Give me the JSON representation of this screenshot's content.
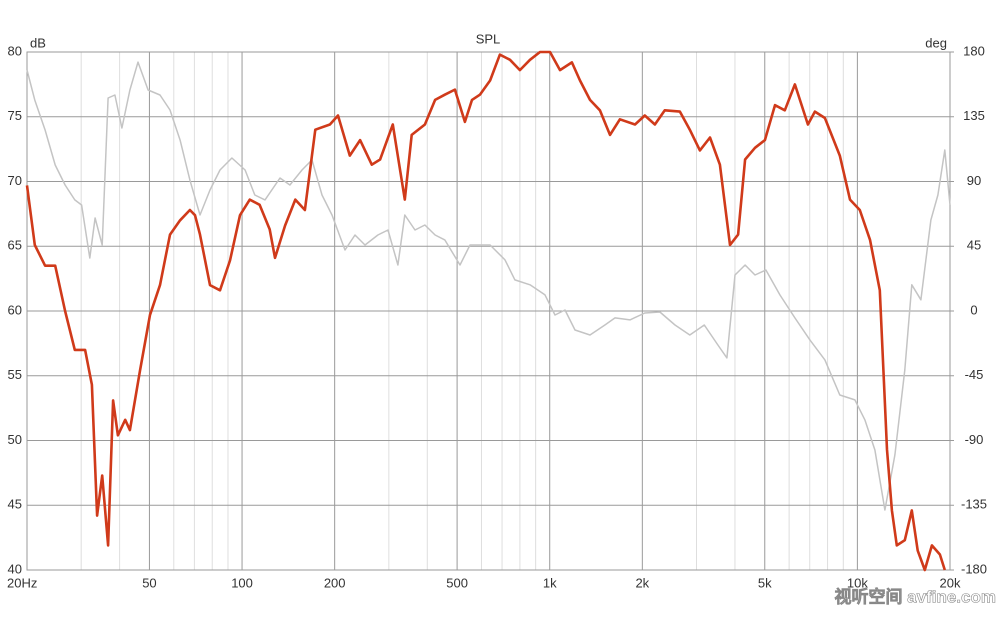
{
  "chart_data": {
    "type": "line",
    "title": "SPL",
    "ylabel": "dB",
    "y2label": "deg",
    "xscale": "log",
    "xlim": [
      20,
      20000
    ],
    "xticks": [
      {
        "value": 20,
        "label": "20Hz"
      },
      50,
      100,
      200,
      500,
      {
        "value": 1000,
        "label": "1k"
      },
      {
        "value": 2000,
        "label": "2k"
      },
      {
        "value": 5000,
        "label": "5k"
      },
      {
        "value": 10000,
        "label": "10k"
      },
      {
        "value": 20000,
        "label": "20k"
      }
    ],
    "xminorticks": [
      30,
      40,
      60,
      70,
      80,
      90,
      300,
      400,
      600,
      700,
      800,
      900,
      3000,
      4000,
      6000,
      7000,
      8000,
      9000
    ],
    "ylim": [
      40,
      80
    ],
    "yticks": [
      40,
      45,
      50,
      55,
      60,
      65,
      70,
      75,
      80
    ],
    "y2lim": [
      -180,
      180
    ],
    "y2ticks": [
      -180,
      -135,
      -90,
      -45,
      0,
      45,
      90,
      135,
      180
    ],
    "grid": true,
    "series": [
      {
        "name": "SPL",
        "color": "#d03a1a",
        "x": [
          20,
          21.2,
          22.9,
          24.7,
          26.6,
          28.6,
          30.9,
          32.5,
          33.8,
          35.1,
          36.7,
          38.1,
          39.5,
          41.7,
          43.2,
          46.6,
          50.2,
          54.1,
          58.3,
          62.9,
          67.7,
          70.3,
          73,
          78.7,
          84.8,
          91.4,
          98.5,
          106,
          114,
          123,
          128,
          138,
          149,
          160,
          173,
          193,
          205,
          224,
          242,
          264,
          281,
          309,
          338,
          356,
          393,
          424,
          456,
          492,
          530,
          559,
          593,
          640,
          689,
          743,
          800,
          863,
          930,
          1002,
          1080,
          1181,
          1254,
          1352,
          1456,
          1570,
          1691,
          1893,
          2038,
          2198,
          2367,
          2650,
          2853,
          3076,
          3318,
          3573,
          3855,
          4094,
          4317,
          4648,
          5005,
          5397,
          5808,
          6267,
          6904,
          7278,
          7839,
          8770,
          9462,
          10186,
          10990,
          11830,
          12480,
          12950,
          13430,
          14260,
          15030,
          15710,
          16560,
          17460,
          18540,
          19240
        ],
        "values": [
          69.7,
          65.1,
          63.5,
          63.5,
          60,
          57,
          57,
          54.3,
          44.2,
          47.3,
          41.9,
          53.1,
          50.4,
          51.6,
          50.8,
          55.4,
          59.7,
          62,
          65.9,
          67,
          67.8,
          67.4,
          65.9,
          62,
          61.6,
          63.9,
          67.4,
          68.6,
          68.2,
          66.3,
          64.1,
          66.6,
          68.6,
          67.8,
          74,
          74.4,
          75.1,
          72,
          73.2,
          71.3,
          71.7,
          74.4,
          68.6,
          73.6,
          74.4,
          76.3,
          76.7,
          77.1,
          74.6,
          76.3,
          76.7,
          77.8,
          79.8,
          79.4,
          78.6,
          79.4,
          80,
          80,
          78.6,
          79.2,
          77.8,
          76.3,
          75.5,
          73.6,
          74.8,
          74.4,
          75.1,
          74.4,
          75.5,
          75.4,
          74,
          72.4,
          73.4,
          71.3,
          65.1,
          65.9,
          71.7,
          72.6,
          73.2,
          75.9,
          75.5,
          77.5,
          74.4,
          75.4,
          74.9,
          72,
          68.6,
          67.8,
          65.5,
          61.6,
          49.3,
          44.6,
          41.9,
          42.3,
          44.6,
          41.5,
          40,
          41.9,
          41.2,
          40
        ]
      },
      {
        "name": "Phase",
        "color": "#c4c4c4",
        "axis": "y2",
        "x": [
          20,
          21.2,
          22.9,
          24.7,
          26.6,
          28.6,
          30.1,
          32,
          33.3,
          35.1,
          36.7,
          38.6,
          40.7,
          43.2,
          45.9,
          49.5,
          54.1,
          58.3,
          62.9,
          67.7,
          73,
          78.7,
          84.8,
          92.7,
          102.3,
          110,
          118.7,
          132.8,
          143.1,
          156.6,
          168.8,
          181.9,
          196,
          216,
          232.8,
          251,
          276.5,
          298,
          321,
          338,
          364.8,
          393,
          424,
          456,
          510.8,
          550.6,
          640,
          715.7,
          770.9,
          863,
          965,
          1040,
          1121,
          1208,
          1352,
          1511,
          1630,
          1823,
          2038,
          2281,
          2553,
          2853,
          3181,
          3521,
          3767,
          4000,
          4317,
          4648,
          5043,
          5600,
          6267,
          7010,
          7839,
          8770,
          9818,
          10580,
          11400,
          12290,
          13240,
          14260,
          15030,
          16090,
          17340,
          18270,
          19240,
          20000
        ],
        "values": [
          167.5,
          146.6,
          125.8,
          101.5,
          87.6,
          77.2,
          73.7,
          36.8,
          64.6,
          45.9,
          148,
          150.1,
          127.2,
          153.6,
          173,
          153.6,
          150.1,
          139.7,
          118.8,
          91,
          66.7,
          84.1,
          98,
          106.3,
          98,
          80.6,
          77.2,
          92.4,
          87.6,
          98,
          105,
          80.6,
          66.7,
          42.4,
          52.8,
          45.9,
          52.8,
          56.3,
          32,
          66.7,
          56.3,
          59.8,
          52.8,
          49.4,
          32,
          45.9,
          45.9,
          35.5,
          21.6,
          18.2,
          11.2,
          -2.8,
          0.7,
          -13.2,
          -16.7,
          -9.7,
          -4.8,
          -6.2,
          -1.4,
          -0.7,
          -9.7,
          -16.7,
          -9.7,
          -23.6,
          -32.6,
          25,
          32,
          25,
          28.5,
          11.2,
          -4.8,
          -20.1,
          -34,
          -58.4,
          -61.8,
          -75.7,
          -96.6,
          -138.3,
          -100,
          -41,
          18.2,
          7.8,
          63.3,
          80.6,
          111.9,
          73.7
        ]
      }
    ],
    "watermark": "视听空间 avfine.com"
  }
}
